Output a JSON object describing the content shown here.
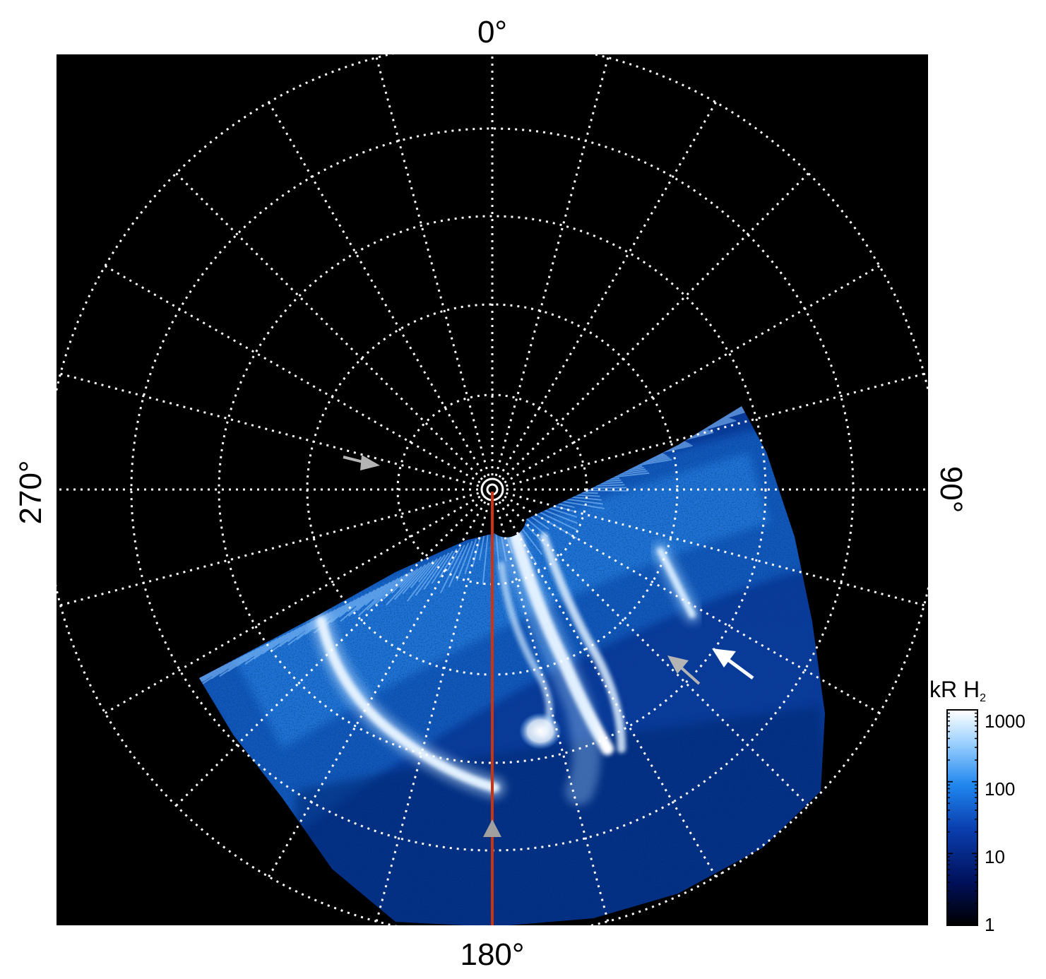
{
  "figure": {
    "longitude_labels": {
      "top": "0°",
      "bottom": "180°",
      "left": "270°",
      "right": "90°"
    },
    "colorbar": {
      "unit_main": "kR H",
      "unit_sub": "2",
      "scale": "log",
      "range": [
        1,
        1000
      ],
      "ticks": [
        "1000",
        "100",
        "10",
        "1"
      ],
      "colors": [
        "#000000",
        "#00105a",
        "#0a3fb0",
        "#1f86ee",
        "#9fd2ff",
        "#ffffff"
      ]
    },
    "background_color": "#000000",
    "grid_color": "#ffffff",
    "meridian_line_color": "#cc3311",
    "arrow_colors": {
      "gray": "#b4b4b4",
      "white": "#ffffff"
    }
  }
}
